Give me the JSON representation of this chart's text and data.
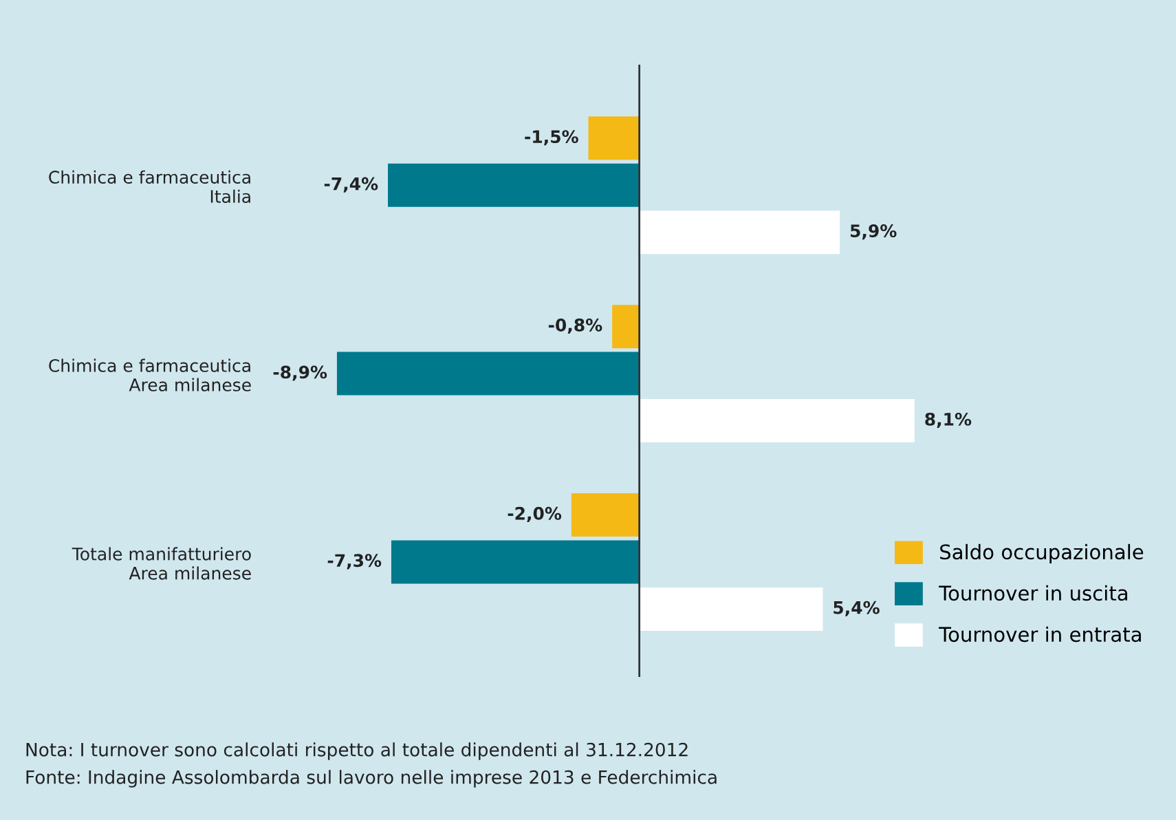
{
  "chart_data": {
    "type": "bar",
    "orientation": "horizontal",
    "categories": [
      "Chimica e farmaceutica\nItalia",
      "Chimica e farmaceutica\nArea milanese",
      "Totale manifatturiero\nArea milanese"
    ],
    "series": [
      {
        "name": "Saldo occupazionale",
        "color": "#f5b915",
        "values": [
          -1.5,
          -0.8,
          -2.0
        ],
        "value_labels": [
          "-1,5%",
          "-0,8%",
          "-2,0%"
        ]
      },
      {
        "name": "Tournover in uscita",
        "color": "#00798c",
        "values": [
          -7.4,
          -8.9,
          -7.3
        ],
        "value_labels": [
          "-7,4%",
          "-8,9%",
          "-7,3%"
        ]
      },
      {
        "name": "Tournover in entrata",
        "color": "#ffffff",
        "values": [
          5.9,
          8.1,
          5.4
        ],
        "value_labels": [
          "5,9%",
          "8,1%",
          "5,4%"
        ]
      }
    ],
    "legend": "bottom right",
    "grid": false,
    "annotations": [
      "Nota: I turnover sono calcolati rispetto al totale dipendenti al 31.12.2012",
      "Fonte: Indagine Assolombarda sul lavoro nelle imprese 2013 e Federchimica"
    ]
  }
}
